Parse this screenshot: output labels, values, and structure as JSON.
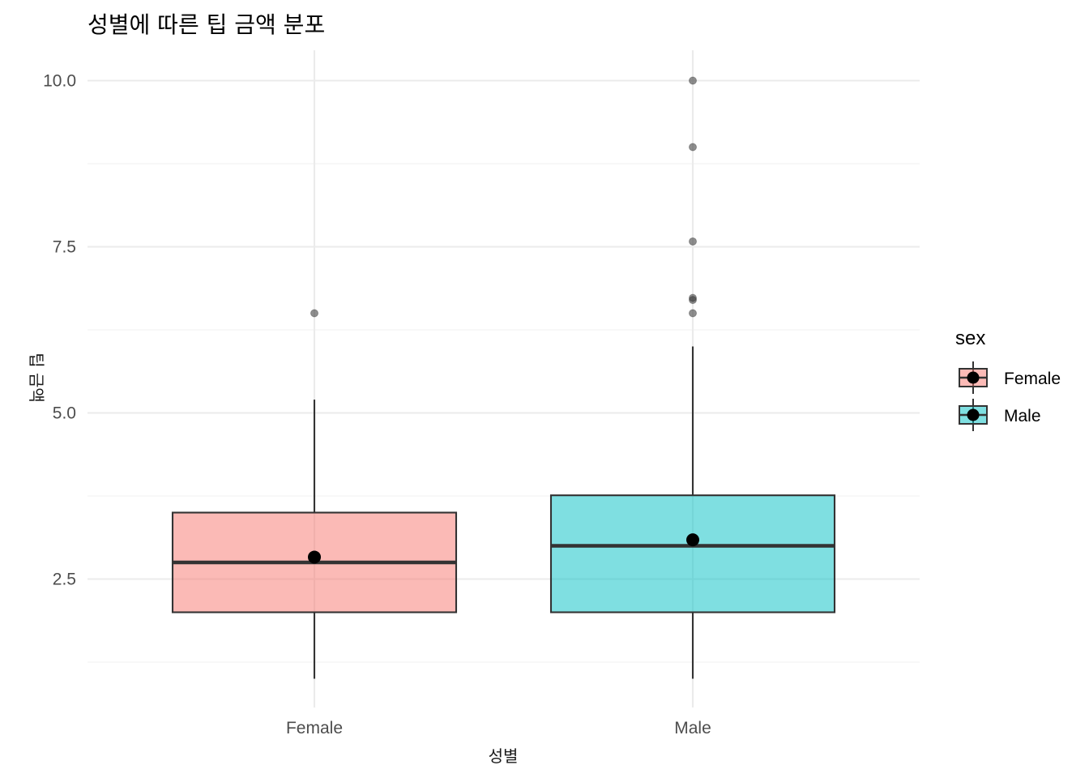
{
  "chart_data": {
    "type": "boxplot",
    "title": "성별에 따른 팁 금액 분포",
    "xlabel": "성별",
    "ylabel": "팁 금액",
    "categories": [
      "Female",
      "Male"
    ],
    "y_ticks": [
      "2.5",
      "5.0",
      "7.5",
      "10.0"
    ],
    "y_tick_values": [
      2.5,
      5.0,
      7.5,
      10.0
    ],
    "ylim": [
      1.0,
      10.0
    ],
    "grid": true,
    "legend": {
      "title": "sex",
      "position": "right",
      "entries": [
        "Female",
        "Male"
      ]
    },
    "series": [
      {
        "name": "Female",
        "color": "#F8766D",
        "min": 1.0,
        "q1": 2.0,
        "median": 2.75,
        "q3": 3.5,
        "max": 5.2,
        "mean": 2.83,
        "outliers": [
          6.5
        ]
      },
      {
        "name": "Male",
        "color": "#00BFC4",
        "min": 1.0,
        "q1": 2.0,
        "median": 3.0,
        "q3": 3.76,
        "max": 6.0,
        "mean": 3.09,
        "outliers": [
          6.5,
          6.7,
          6.73,
          7.58,
          9.0,
          10.0
        ]
      }
    ]
  }
}
